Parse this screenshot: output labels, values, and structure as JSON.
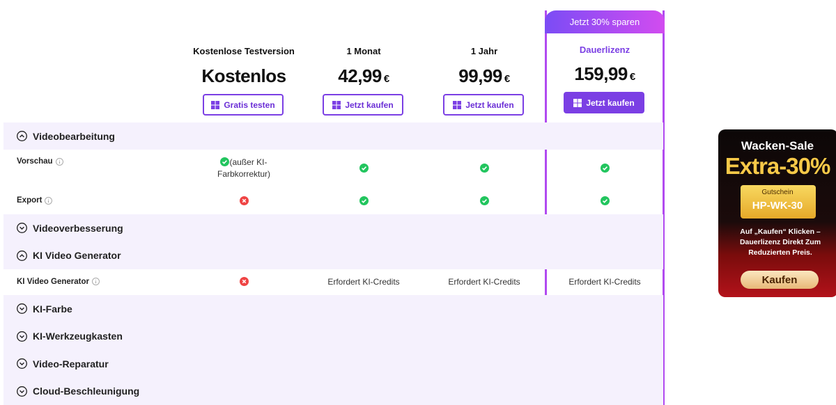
{
  "plans": [
    {
      "name": "Kostenlose Testversion",
      "price": "Kostenlos",
      "button": "Gratis testen"
    },
    {
      "name": "1 Monat",
      "price": "42,99",
      "currency": "€",
      "button": "Jetzt kaufen"
    },
    {
      "name": "1 Jahr",
      "price": "99,99",
      "currency": "€",
      "button": "Jetzt kaufen"
    },
    {
      "name": "Dauerlizenz",
      "price": "159,99",
      "currency": "€",
      "button": "Jetzt kaufen",
      "badge": "Jetzt 30% sparen",
      "highlighted": true
    }
  ],
  "rows": [
    {
      "section": "Videobearbeitung",
      "expanded": true
    },
    {
      "label": "Vorschau",
      "info": true,
      "cells": [
        {
          "icon": "check",
          "text": "(außer KI-Farbkorrektur)"
        },
        {
          "icon": "check"
        },
        {
          "icon": "check"
        },
        {
          "icon": "check"
        }
      ]
    },
    {
      "label": "Export",
      "info": true,
      "cells": [
        {
          "icon": "cross"
        },
        {
          "icon": "check"
        },
        {
          "icon": "check"
        },
        {
          "icon": "check"
        }
      ]
    },
    {
      "section": "Videoverbesserung",
      "expanded": false
    },
    {
      "section": "KI Video Generator",
      "expanded": true
    },
    {
      "label": "KI Video Generator",
      "info": true,
      "cells": [
        {
          "icon": "cross"
        },
        {
          "text": "Erfordert KI-Credits"
        },
        {
          "text": "Erfordert KI-Credits"
        },
        {
          "text": "Erfordert KI-Credits"
        }
      ]
    },
    {
      "section": "KI-Farbe",
      "expanded": false
    },
    {
      "section": "KI-Werkzeugkasten",
      "expanded": false
    },
    {
      "section": "Video-Reparatur",
      "expanded": false
    },
    {
      "section": "Cloud-Beschleunigung",
      "expanded": false
    }
  ],
  "promo": {
    "title": "Wacken-Sale",
    "headline": "Extra-30%",
    "coupon_label": "Gutschein",
    "coupon_code": "HP-WK-30",
    "text": "Auf „Kaufen“ Klicken – Dauerlizenz Direkt Zum Reduzierten Preis.",
    "button": "Kaufen"
  }
}
